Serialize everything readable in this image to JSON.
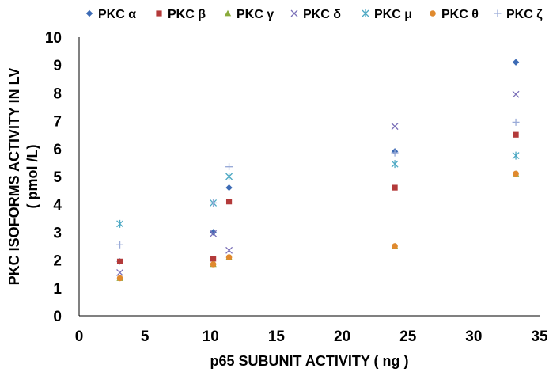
{
  "chart_data": {
    "type": "scatter",
    "title": "",
    "xlabel": "p65 SUBUNIT ACTIVITY ( ng )",
    "ylabel_line1": "PKC  ISOFORMS  ACTIVITY  IN  LV",
    "ylabel_line2": "( pmol /L)",
    "xlim": [
      0,
      35
    ],
    "ylim": [
      0,
      10
    ],
    "xticks": [
      0,
      5,
      10,
      15,
      20,
      25,
      30,
      35
    ],
    "yticks": [
      0,
      1,
      2,
      3,
      4,
      5,
      6,
      7,
      8,
      9,
      10
    ],
    "grid": false,
    "legend_position": "top",
    "x": [
      3.1,
      10.2,
      11.4,
      24.0,
      33.2
    ],
    "series": [
      {
        "name": "PKC α",
        "marker": "diamond",
        "color": "#3d6bb5",
        "values": [
          1.95,
          3.0,
          4.6,
          5.9,
          9.1
        ]
      },
      {
        "name": "PKC β",
        "marker": "square",
        "color": "#b33a3a",
        "values": [
          1.95,
          2.05,
          4.1,
          4.6,
          6.5
        ]
      },
      {
        "name": "PKC γ",
        "marker": "triangle",
        "color": "#8aab3c",
        "values": [
          1.35,
          1.85,
          2.1,
          2.5,
          5.1
        ]
      },
      {
        "name": "PKC δ",
        "marker": "x",
        "color": "#7b70b8",
        "values": [
          1.55,
          2.95,
          2.35,
          6.8,
          7.95
        ]
      },
      {
        "name": "PKC μ",
        "marker": "asterisk",
        "color": "#4ea9c4",
        "values": [
          3.3,
          4.05,
          5.0,
          5.45,
          5.75
        ]
      },
      {
        "name": "PKC θ",
        "marker": "circle",
        "color": "#e08a2e",
        "values": [
          1.35,
          1.85,
          2.1,
          2.5,
          5.1
        ]
      },
      {
        "name": "PKC ζ",
        "marker": "plus",
        "color": "#9aabd8",
        "values": [
          2.55,
          4.05,
          5.35,
          5.85,
          6.95
        ]
      }
    ]
  }
}
